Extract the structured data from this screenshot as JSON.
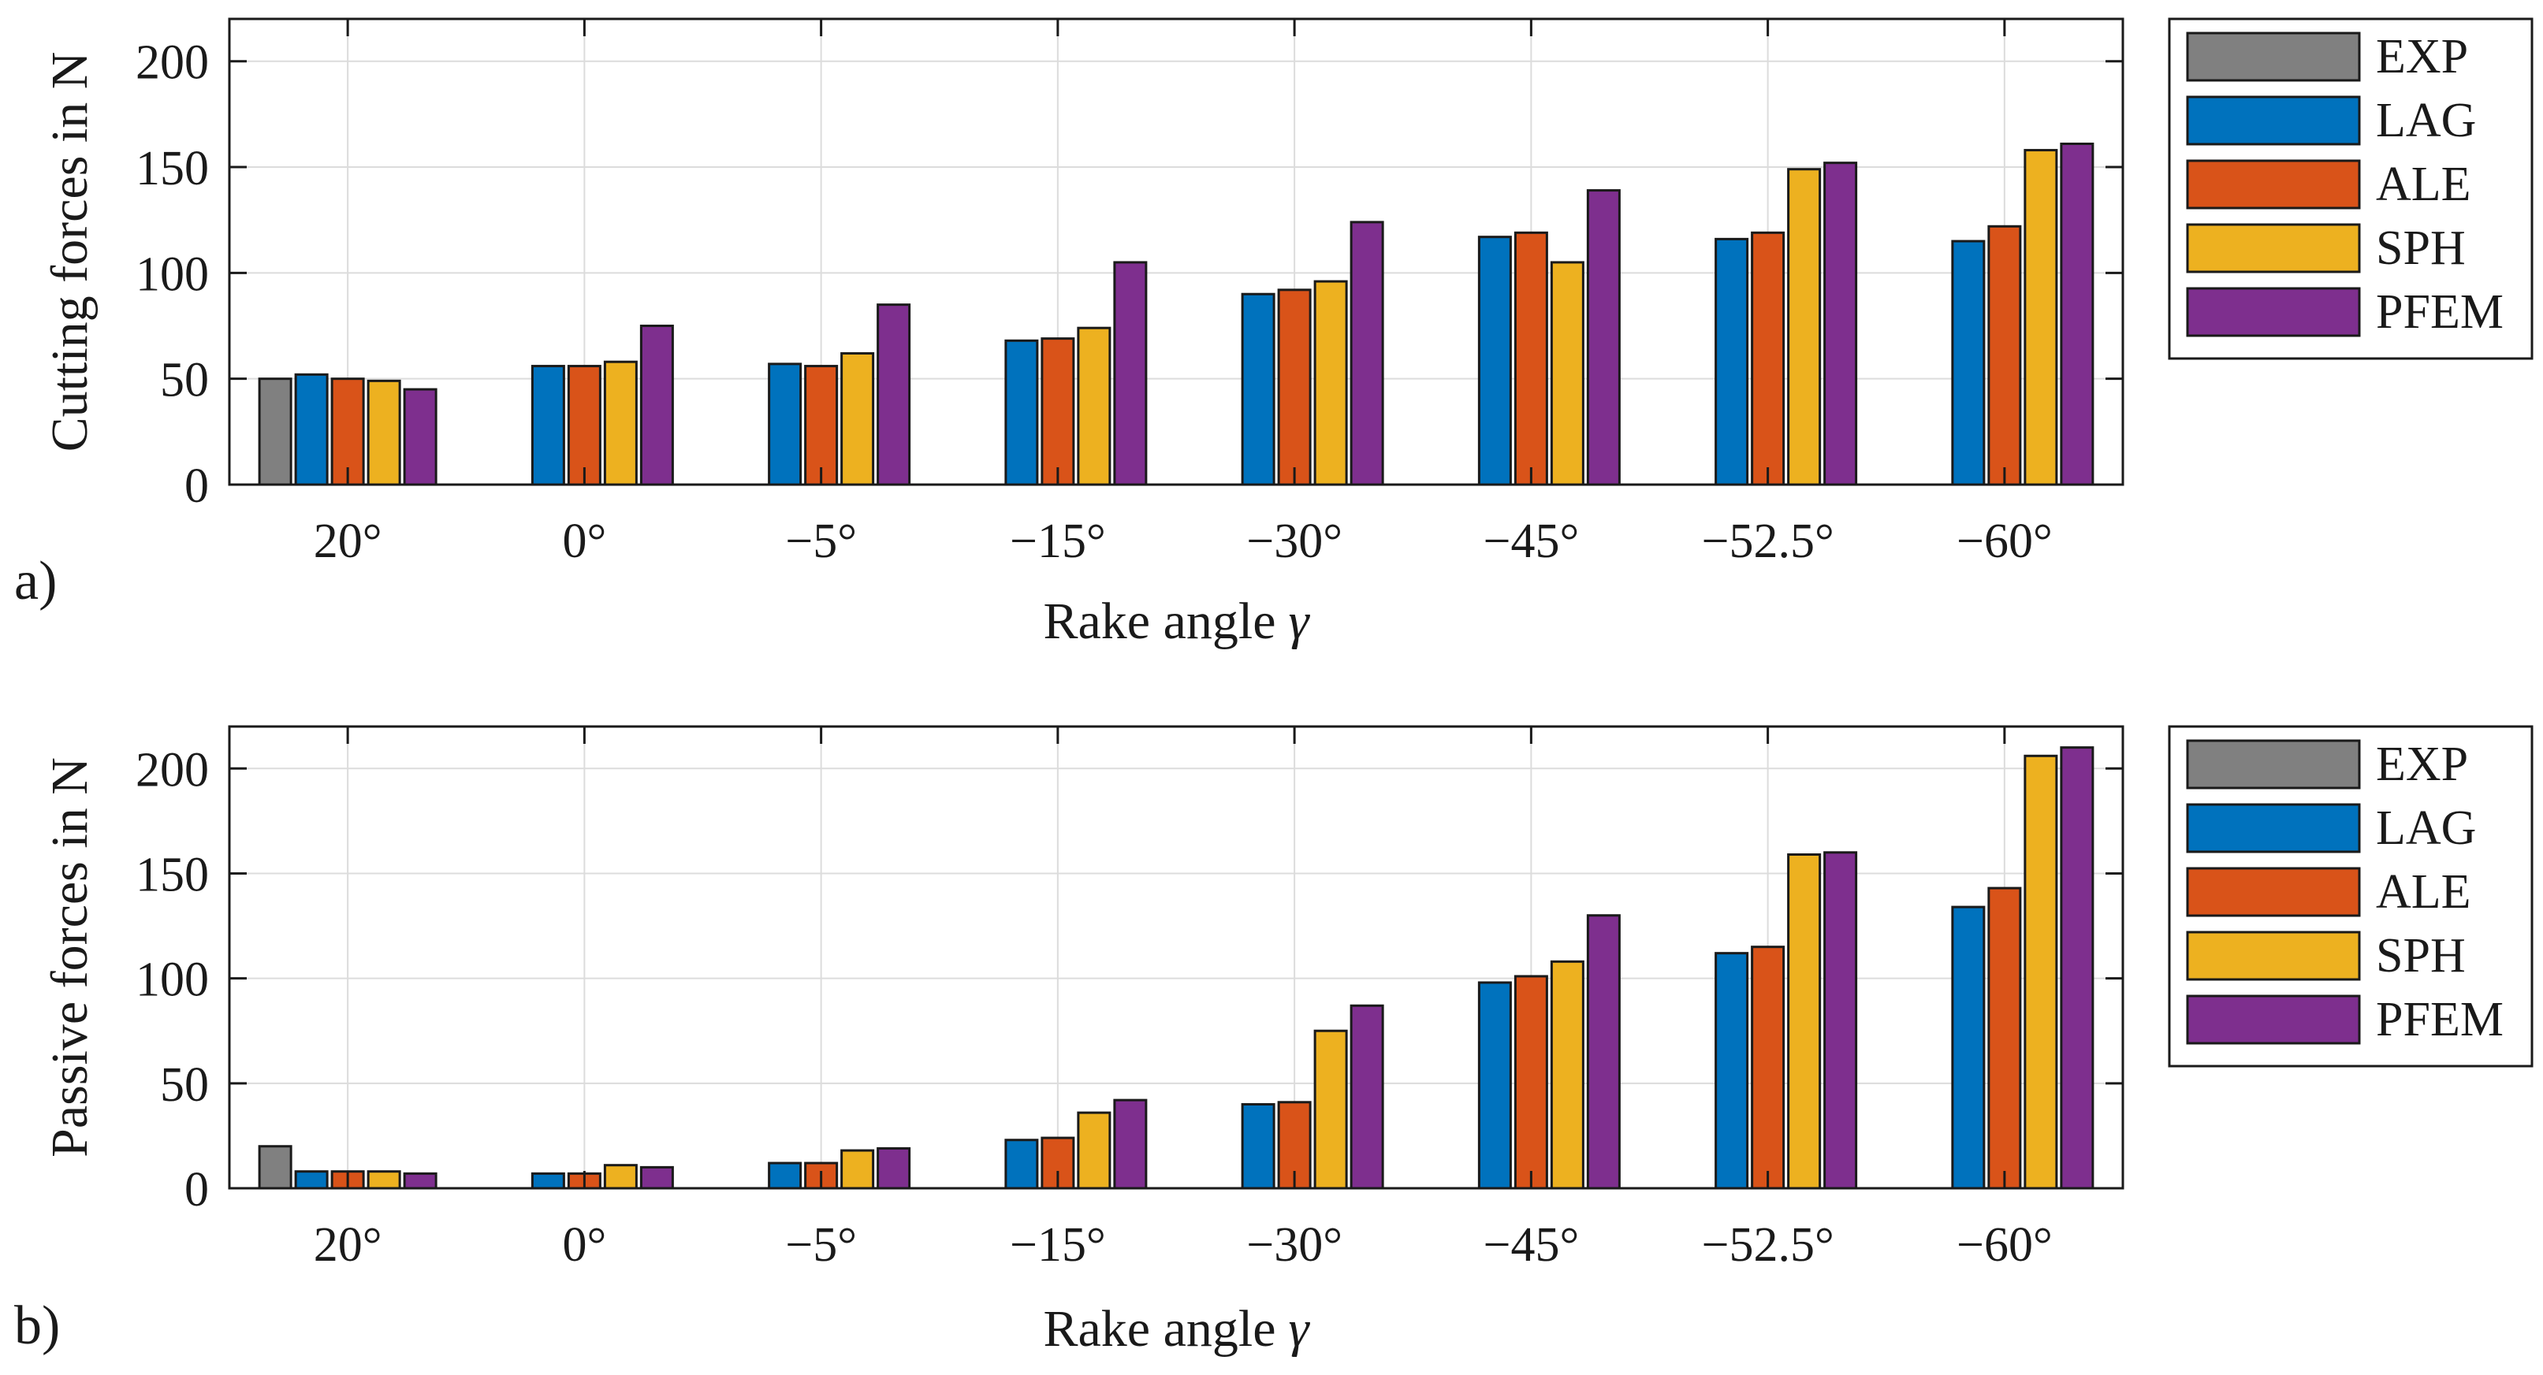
{
  "chart_data": [
    {
      "type": "bar",
      "panel_label": "a)",
      "categories": [
        "20°",
        "0°",
        "−5°",
        "−15°",
        "−30°",
        "−45°",
        "−52.5°",
        "−60°"
      ],
      "series": [
        {
          "name": "EXP",
          "color": "#808080",
          "values": [
            50,
            0,
            0,
            0,
            0,
            0,
            0,
            0
          ]
        },
        {
          "name": "LAG",
          "color": "#0072BD",
          "values": [
            52,
            56,
            57,
            68,
            90,
            117,
            116,
            115
          ]
        },
        {
          "name": "ALE",
          "color": "#D95319",
          "values": [
            50,
            56,
            56,
            69,
            92,
            119,
            119,
            122
          ]
        },
        {
          "name": "SPH",
          "color": "#EDB120",
          "values": [
            49,
            58,
            62,
            74,
            96,
            105,
            149,
            158
          ]
        },
        {
          "name": "PFEM",
          "color": "#7E2F8E",
          "values": [
            45,
            75,
            85,
            105,
            124,
            139,
            152,
            161
          ]
        }
      ],
      "xlabel": "Rake angle",
      "xlabel_symbol": "γ",
      "ylabel": "Cutting forces in N",
      "ylim": [
        0,
        220
      ],
      "yticks": [
        "0",
        "50",
        "100",
        "150",
        "200"
      ],
      "grid": true,
      "legend_position": "outside-right"
    },
    {
      "type": "bar",
      "panel_label": "b)",
      "categories": [
        "20°",
        "0°",
        "−5°",
        "−15°",
        "−30°",
        "−45°",
        "−52.5°",
        "−60°"
      ],
      "series": [
        {
          "name": "EXP",
          "color": "#808080",
          "values": [
            20,
            0,
            0,
            0,
            0,
            0,
            0,
            0
          ]
        },
        {
          "name": "LAG",
          "color": "#0072BD",
          "values": [
            8,
            7,
            12,
            23,
            40,
            98,
            112,
            134
          ]
        },
        {
          "name": "ALE",
          "color": "#D95319",
          "values": [
            8,
            7,
            12,
            24,
            41,
            101,
            115,
            143
          ]
        },
        {
          "name": "SPH",
          "color": "#EDB120",
          "values": [
            8,
            11,
            18,
            36,
            75,
            108,
            159,
            206
          ]
        },
        {
          "name": "PFEM",
          "color": "#7E2F8E",
          "values": [
            7,
            10,
            19,
            42,
            87,
            130,
            160,
            210
          ]
        }
      ],
      "xlabel": "Rake angle",
      "xlabel_symbol": "γ",
      "ylabel": "Passive forces in N",
      "ylim": [
        0,
        220
      ],
      "yticks": [
        "0",
        "50",
        "100",
        "150",
        "200"
      ],
      "grid": true,
      "legend_position": "outside-right"
    }
  ]
}
